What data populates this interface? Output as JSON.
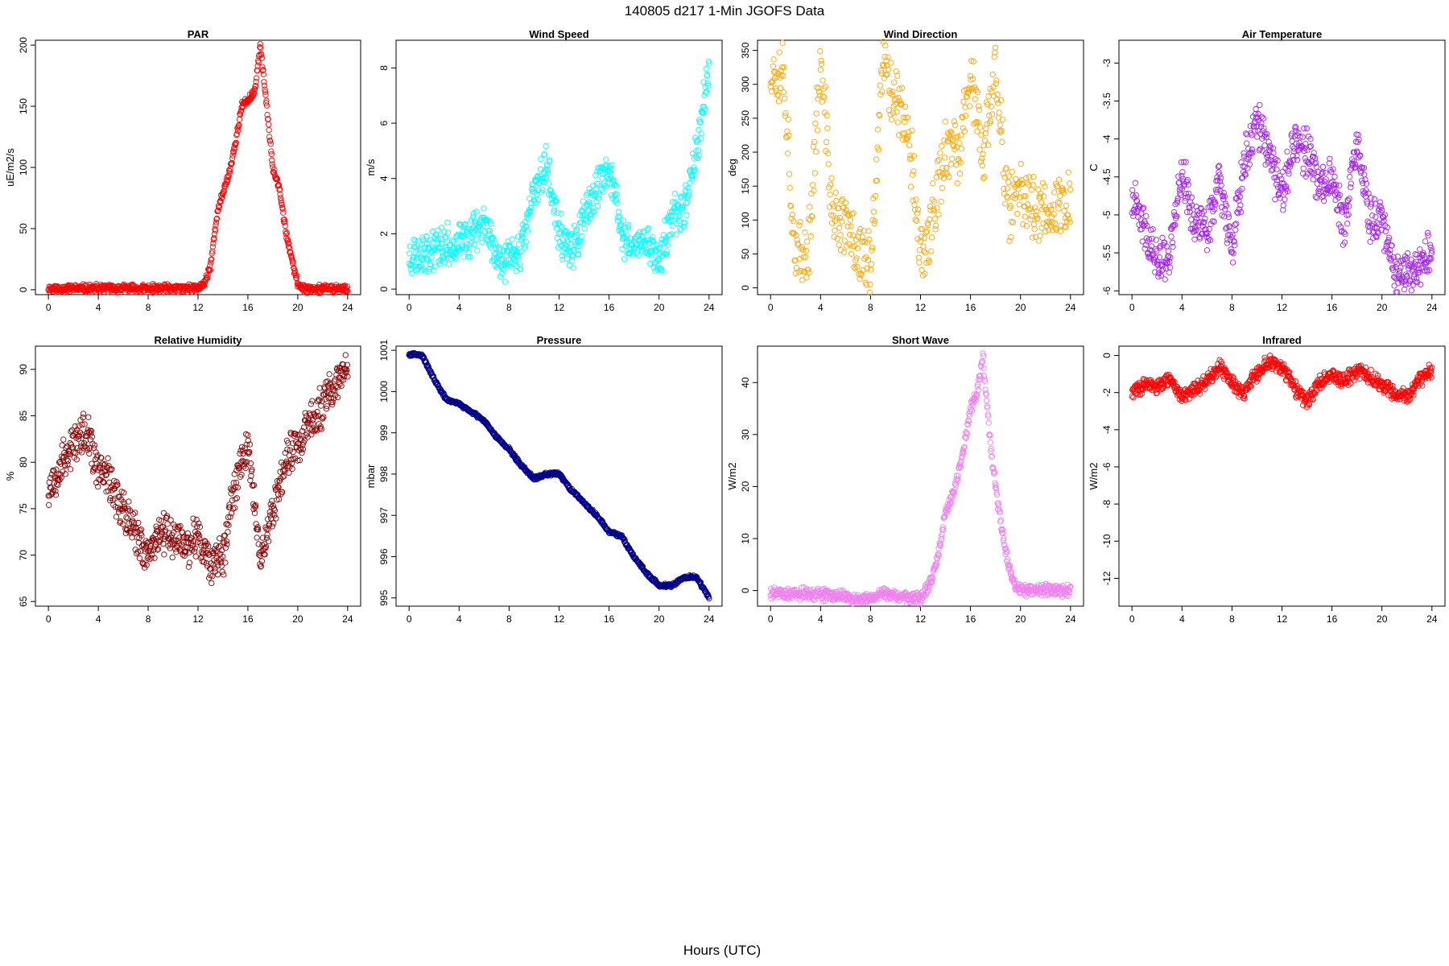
{
  "figure": {
    "title": "140805   d217   1-Min  JGOFS Data",
    "xlabel": "Hours (UTC)"
  },
  "chart_data": [
    {
      "type": "scatter",
      "title": "PAR",
      "ylabel": "uE/m2/s",
      "color": "#ff0000",
      "xlim": [
        0,
        24
      ],
      "xticks": [
        0,
        4,
        8,
        12,
        16,
        20,
        24
      ],
      "ylim": [
        -4,
        204
      ],
      "yticks": [
        0,
        50,
        100,
        150,
        200
      ],
      "series": [
        {
          "x": [
            0,
            12,
            12.5,
            13,
            13.5,
            14,
            14.5,
            15,
            15.5,
            16,
            16.5,
            17,
            17.5,
            18,
            18.5,
            19,
            19.5,
            20,
            20.5,
            24
          ],
          "y": [
            1,
            1,
            5,
            20,
            60,
            80,
            95,
            120,
            150,
            155,
            160,
            200,
            150,
            100,
            85,
            50,
            25,
            5,
            1,
            1
          ]
        }
      ]
    },
    {
      "type": "scatter",
      "title": "Wind Speed",
      "ylabel": "m/s",
      "color": "#00ffff",
      "xlim": [
        0,
        24
      ],
      "xticks": [
        0,
        4,
        8,
        12,
        16,
        20,
        24
      ],
      "ylim": [
        -0.2,
        9
      ],
      "yticks": [
        0,
        2,
        4,
        6,
        8
      ],
      "series": [
        {
          "x": [
            0,
            2,
            4,
            6,
            7,
            8,
            9,
            10,
            11,
            12,
            13,
            14,
            15,
            16,
            17,
            18,
            19,
            20,
            21,
            22,
            23,
            24
          ],
          "y": [
            1.2,
            1.5,
            1.6,
            2.5,
            1.2,
            1.0,
            1.5,
            3.5,
            4.5,
            2.0,
            1.3,
            2.5,
            3.5,
            4.5,
            2.0,
            1.5,
            1.8,
            1.0,
            2.5,
            3.0,
            5.0,
            8.0
          ]
        }
      ]
    },
    {
      "type": "scatter",
      "title": "Wind Direction",
      "ylabel": "deg",
      "color": "#ffa500",
      "xlim": [
        0,
        24
      ],
      "xticks": [
        0,
        4,
        8,
        12,
        16,
        20,
        24
      ],
      "ylim": [
        -10,
        365
      ],
      "yticks": [
        0,
        50,
        100,
        150,
        200,
        250,
        300,
        350
      ],
      "series": [
        {
          "x": [
            0,
            1,
            2,
            3,
            4,
            5,
            6,
            7,
            8,
            9,
            10,
            11,
            12,
            13,
            14,
            15,
            16,
            17,
            18,
            19,
            20,
            21,
            22,
            23,
            24
          ],
          "y": [
            320,
            330,
            40,
            50,
            330,
            100,
            95,
            60,
            30,
            330,
            280,
            240,
            50,
            100,
            210,
            190,
            320,
            180,
            330,
            120,
            130,
            120,
            115,
            120,
            120
          ]
        }
      ]
    },
    {
      "type": "scatter",
      "title": "Air Temperature",
      "ylabel": "C",
      "color": "#a020f0",
      "xlim": [
        0,
        24
      ],
      "xticks": [
        0,
        4,
        8,
        12,
        16,
        20,
        24
      ],
      "ylim": [
        -6.05,
        -2.7
      ],
      "yticks": [
        -6.0,
        -5.5,
        -5.0,
        -4.5,
        -4.0,
        -3.5,
        -3.0
      ],
      "series": [
        {
          "x": [
            0,
            1,
            2,
            3,
            4,
            5,
            6,
            7,
            8,
            9,
            10,
            11,
            12,
            13,
            14,
            15,
            16,
            17,
            18,
            19,
            20,
            21,
            22,
            23,
            24
          ],
          "y": [
            -4.8,
            -5.2,
            -5.6,
            -5.5,
            -4.4,
            -5.1,
            -5.2,
            -4.5,
            -5.5,
            -4.3,
            -3.8,
            -4.2,
            -4.8,
            -4.0,
            -4.2,
            -4.6,
            -4.5,
            -5.2,
            -4.0,
            -5.1,
            -5.0,
            -5.8,
            -5.7,
            -5.7,
            -5.5
          ]
        }
      ]
    },
    {
      "type": "scatter",
      "title": "Relative Humidity",
      "ylabel": "%",
      "color": "#8b0000",
      "xlim": [
        0,
        24
      ],
      "xticks": [
        0,
        4,
        8,
        12,
        16,
        20,
        24
      ],
      "ylim": [
        64.5,
        92.5
      ],
      "yticks": [
        65,
        70,
        75,
        80,
        85,
        90
      ],
      "series": [
        {
          "x": [
            0,
            1,
            2,
            3,
            4,
            5,
            6,
            7,
            8,
            9,
            10,
            11,
            12,
            13,
            14,
            15,
            16,
            17,
            18,
            19,
            20,
            21,
            22,
            23,
            24
          ],
          "y": [
            77,
            80,
            82,
            83,
            79,
            78,
            75,
            72,
            70,
            73,
            72,
            71,
            72,
            69,
            70,
            78,
            82,
            70,
            75,
            80,
            82,
            84,
            86,
            88,
            91
          ]
        }
      ]
    },
    {
      "type": "scatter",
      "title": "Pressure",
      "ylabel": "mbar",
      "color": "#00008b",
      "xlim": [
        0,
        24
      ],
      "xticks": [
        0,
        4,
        8,
        12,
        16,
        20,
        24
      ],
      "ylim": [
        994.8,
        1001.1
      ],
      "yticks": [
        995,
        996,
        997,
        998,
        999,
        1000,
        1001
      ],
      "series": [
        {
          "x": [
            0,
            1,
            2,
            3,
            4,
            5,
            6,
            7,
            8,
            9,
            10,
            11,
            12,
            13,
            14,
            15,
            16,
            17,
            18,
            19,
            20,
            21,
            22,
            23,
            24
          ],
          "y": [
            1000.9,
            1000.9,
            1000.3,
            999.8,
            999.7,
            999.5,
            999.3,
            998.9,
            998.6,
            998.2,
            997.9,
            998.0,
            998.0,
            997.6,
            997.3,
            997.0,
            996.6,
            996.5,
            996.0,
            995.6,
            995.3,
            995.3,
            995.5,
            995.5,
            995.0
          ]
        }
      ]
    },
    {
      "type": "scatter",
      "title": "Short Wave",
      "ylabel": "W/m2",
      "color": "#ee82ee",
      "xlim": [
        0,
        24
      ],
      "xticks": [
        0,
        4,
        8,
        12,
        16,
        20,
        24
      ],
      "ylim": [
        -3,
        47
      ],
      "yticks": [
        0,
        10,
        20,
        30,
        40
      ],
      "series": [
        {
          "x": [
            0,
            2,
            4,
            6,
            7,
            8,
            9,
            10,
            11,
            12,
            12.5,
            13,
            13.5,
            14,
            14.5,
            15,
            15.5,
            16,
            16.5,
            17,
            17.5,
            18,
            18.5,
            19,
            19.5,
            20,
            22,
            24
          ],
          "y": [
            -0.5,
            -0.5,
            -0.8,
            -1.2,
            -1.8,
            -1.5,
            -0.5,
            -1.0,
            -1.5,
            -1.5,
            0,
            3,
            8,
            15,
            18,
            22,
            28,
            35,
            38,
            45,
            30,
            20,
            12,
            5,
            1,
            0,
            0,
            0
          ]
        }
      ]
    },
    {
      "type": "scatter",
      "title": "Infrared",
      "ylabel": "W/m2",
      "color": "#ff0000",
      "xlim": [
        0,
        24
      ],
      "xticks": [
        0,
        4,
        8,
        12,
        16,
        20,
        24
      ],
      "ylim": [
        -13.5,
        0.5
      ],
      "yticks": [
        -12,
        -10,
        -8,
        -6,
        -4,
        -2,
        0
      ],
      "series": [
        {
          "x": [
            0,
            1,
            2,
            3,
            4,
            5,
            6,
            7,
            8,
            9,
            10,
            11,
            12,
            13,
            14,
            15,
            16,
            17,
            18,
            19,
            20,
            21,
            22,
            23,
            24
          ],
          "y": [
            -2.0,
            -1.5,
            -1.8,
            -1.2,
            -2.2,
            -1.8,
            -1.4,
            -0.6,
            -1.5,
            -2.0,
            -1.0,
            -0.3,
            -0.6,
            -1.8,
            -2.5,
            -1.5,
            -1.0,
            -1.4,
            -0.8,
            -1.2,
            -1.5,
            -2.0,
            -2.2,
            -1.3,
            -0.8
          ]
        }
      ]
    }
  ]
}
